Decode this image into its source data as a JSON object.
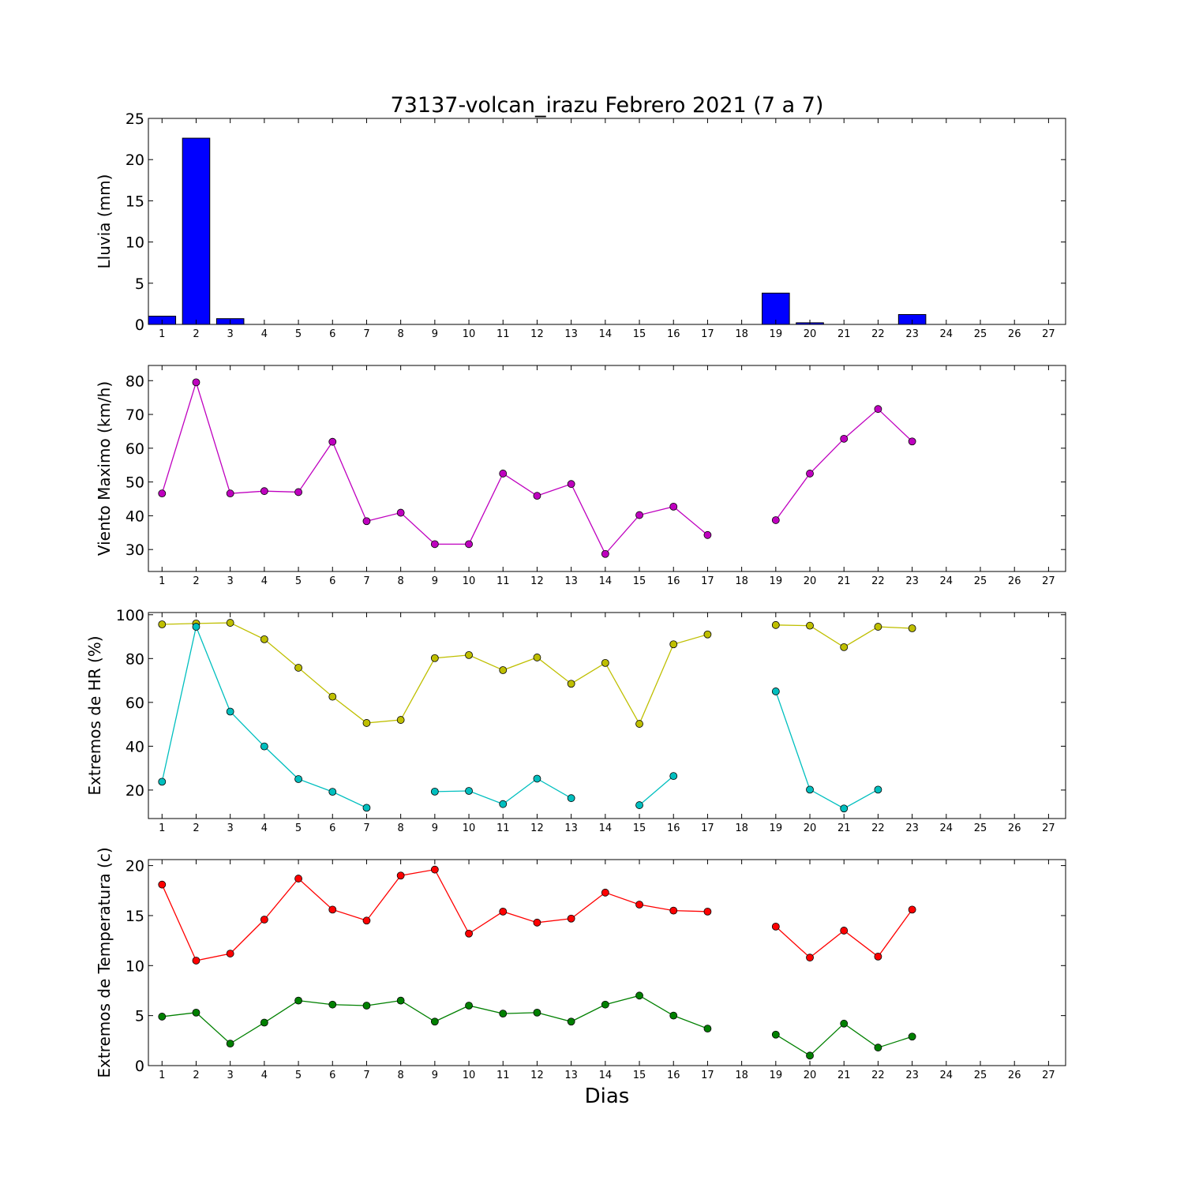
{
  "chart_data": [
    {
      "type": "bar",
      "title": "73137-volcan_irazu Febrero 2021  (7 a 7)",
      "ylabel": "Lluvia (mm)",
      "xlabel": "",
      "xlim": [
        0.6,
        27.5
      ],
      "ylim": [
        0,
        25
      ],
      "yticks": [
        0,
        5,
        10,
        15,
        20,
        25
      ],
      "x": [
        1,
        2,
        3,
        4,
        5,
        6,
        7,
        8,
        9,
        10,
        11,
        12,
        13,
        14,
        15,
        16,
        17,
        18,
        19,
        20,
        21,
        22,
        23
      ],
      "values": [
        1.0,
        22.6,
        0.7,
        0,
        0,
        0,
        0,
        0,
        0,
        0,
        0,
        0,
        0,
        0,
        0,
        0,
        0,
        null,
        3.8,
        0.2,
        0,
        0,
        1.2
      ],
      "color": "#0000ff"
    },
    {
      "type": "line",
      "title": "",
      "ylabel": "Viento Maximo (km/h)",
      "xlabel": "",
      "xlim": [
        0.6,
        27.5
      ],
      "ylim": [
        23.5,
        84.5
      ],
      "yticks": [
        30,
        40,
        50,
        60,
        70,
        80
      ],
      "x": [
        1,
        2,
        3,
        4,
        5,
        6,
        7,
        8,
        9,
        10,
        11,
        12,
        13,
        14,
        15,
        16,
        17,
        18,
        19,
        20,
        21,
        22,
        23
      ],
      "series": [
        {
          "values": [
            46.6,
            79.5,
            46.6,
            47.3,
            47.0,
            61.9,
            38.4,
            40.9,
            31.6,
            31.6,
            52.5,
            45.9,
            49.4,
            28.7,
            40.2,
            42.7,
            34.3,
            null,
            38.7,
            52.5,
            62.8,
            71.6,
            62.0
          ],
          "color": "#bf00bf"
        }
      ]
    },
    {
      "type": "line",
      "title": "",
      "ylabel": "Extremos de HR (%)",
      "xlabel": "",
      "xlim": [
        0.6,
        27.5
      ],
      "ylim": [
        7,
        101
      ],
      "yticks": [
        20,
        40,
        60,
        80,
        100
      ],
      "x": [
        1,
        2,
        3,
        4,
        5,
        6,
        7,
        8,
        9,
        10,
        11,
        12,
        13,
        14,
        15,
        16,
        17,
        18,
        19,
        20,
        21,
        22,
        23
      ],
      "series": [
        {
          "values": [
            95.6,
            96.0,
            96.3,
            88.8,
            75.8,
            62.6,
            50.6,
            52.0,
            80.2,
            81.6,
            74.7,
            80.5,
            68.5,
            78.0,
            50.2,
            86.5,
            91.0,
            null,
            95.3,
            95.0,
            85.2,
            94.5,
            93.8
          ],
          "color": "#bfbf00"
        },
        {
          "values": [
            23.8,
            94.5,
            55.8,
            39.9,
            25.0,
            19.2,
            11.9,
            null,
            19.3,
            19.6,
            13.6,
            25.2,
            16.3,
            null,
            13.1,
            26.4,
            null,
            null,
            65.0,
            20.2,
            11.6,
            20.2,
            null
          ],
          "color": "#00bfbf"
        }
      ]
    },
    {
      "type": "line",
      "title": "",
      "ylabel": "Extremos de Temperatura (c)",
      "xlabel": "Dias",
      "xlim": [
        0.6,
        27.5
      ],
      "ylim": [
        0,
        20.6
      ],
      "yticks": [
        0,
        5,
        10,
        15,
        20
      ],
      "x": [
        1,
        2,
        3,
        4,
        5,
        6,
        7,
        8,
        9,
        10,
        11,
        12,
        13,
        14,
        15,
        16,
        17,
        18,
        19,
        20,
        21,
        22,
        23
      ],
      "series": [
        {
          "values": [
            18.1,
            10.5,
            11.2,
            14.6,
            18.7,
            15.6,
            14.5,
            19.0,
            19.6,
            13.2,
            15.4,
            14.3,
            14.7,
            17.3,
            16.1,
            15.5,
            15.4,
            null,
            13.9,
            10.8,
            13.5,
            10.9,
            15.6
          ],
          "color": "#ff0000"
        },
        {
          "values": [
            4.9,
            5.3,
            2.2,
            4.3,
            6.5,
            6.1,
            6.0,
            6.5,
            4.4,
            6.0,
            5.2,
            5.3,
            4.4,
            6.1,
            7.0,
            5.0,
            3.7,
            null,
            3.1,
            1.0,
            4.2,
            1.8,
            2.9
          ],
          "color": "#008000"
        }
      ]
    }
  ],
  "xticks": [
    1,
    2,
    3,
    4,
    5,
    6,
    7,
    8,
    9,
    10,
    11,
    12,
    13,
    14,
    15,
    16,
    17,
    18,
    19,
    20,
    21,
    22,
    23,
    24,
    25,
    26,
    27
  ]
}
